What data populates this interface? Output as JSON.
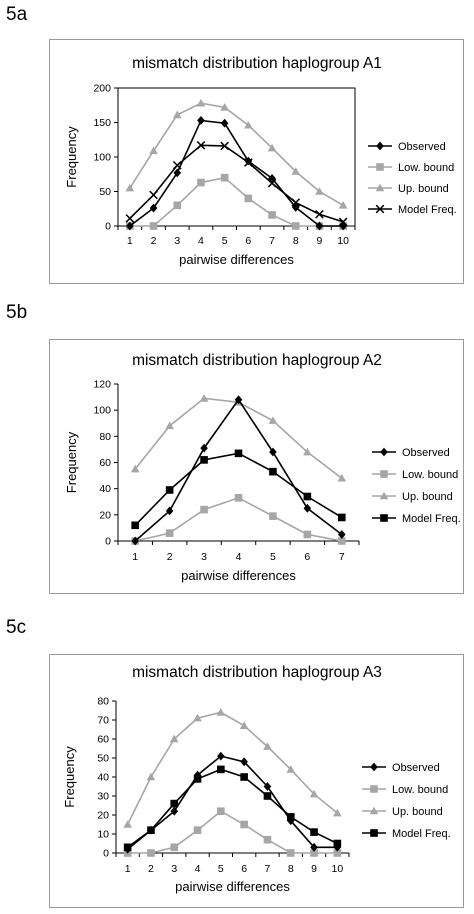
{
  "panels": [
    {
      "label": "5a"
    },
    {
      "label": "5b"
    },
    {
      "label": "5c"
    }
  ],
  "chart_data": [
    {
      "type": "line",
      "title": "mismatch distribution haplogroup A1",
      "xlabel": "pairwise differences",
      "ylabel": "Frequency",
      "categories": [
        "1",
        "2",
        "3",
        "4",
        "5",
        "6",
        "7",
        "8",
        "9",
        "10"
      ],
      "ylim": [
        0,
        200
      ],
      "yticks": [
        0,
        50,
        100,
        150,
        200
      ],
      "legend_position": "right",
      "plot_frame": true,
      "series": [
        {
          "name": "Observed",
          "marker": "diamond",
          "color": "#000000",
          "values": [
            0,
            26,
            77,
            153,
            149,
            94,
            69,
            27,
            0,
            0
          ]
        },
        {
          "name": "Low. bound",
          "marker": "square",
          "color": "#a6a6a6",
          "values": [
            0,
            0,
            30,
            63,
            70,
            40,
            16,
            0,
            0,
            0
          ]
        },
        {
          "name": "Up. bound",
          "marker": "triangle",
          "color": "#a6a6a6",
          "values": [
            55,
            109,
            161,
            178,
            172,
            146,
            113,
            79,
            50,
            30
          ]
        },
        {
          "name": "Model Freq.",
          "marker": "x",
          "color": "#000000",
          "values": [
            11,
            45,
            88,
            117,
            116,
            92,
            62,
            34,
            17,
            6
          ]
        }
      ]
    },
    {
      "type": "line",
      "title": "mismatch distribution haplogroup A2",
      "xlabel": "pairwise differences",
      "ylabel": "Frequency",
      "categories": [
        "1",
        "2",
        "3",
        "4",
        "5",
        "6",
        "7"
      ],
      "ylim": [
        0,
        120
      ],
      "yticks": [
        0,
        20,
        40,
        60,
        80,
        100,
        120
      ],
      "legend_position": "right",
      "plot_frame": false,
      "series": [
        {
          "name": "Observed",
          "marker": "diamond",
          "color": "#000000",
          "values": [
            0,
            23,
            71,
            108,
            68,
            25,
            5
          ]
        },
        {
          "name": "Low. bound",
          "marker": "square",
          "color": "#a6a6a6",
          "values": [
            0,
            6,
            24,
            33,
            19,
            5,
            0
          ]
        },
        {
          "name": "Up. bound",
          "marker": "triangle",
          "color": "#a6a6a6",
          "values": [
            55,
            88,
            109,
            106,
            92,
            68,
            48
          ]
        },
        {
          "name": "Model Freq.",
          "marker": "square",
          "color": "#000000",
          "values": [
            12,
            39,
            62,
            67,
            53,
            34,
            18
          ]
        }
      ]
    },
    {
      "type": "line",
      "title": "mismatch distribution haplogroup A3",
      "xlabel": "pairwise differences",
      "ylabel": "Frequency",
      "categories": [
        "1",
        "2",
        "3",
        "4",
        "5",
        "6",
        "7",
        "8",
        "9",
        "10"
      ],
      "ylim": [
        0,
        80
      ],
      "yticks": [
        0,
        10,
        20,
        30,
        40,
        50,
        60,
        70,
        80
      ],
      "legend_position": "right",
      "plot_frame": false,
      "series": [
        {
          "name": "Observed",
          "marker": "diamond",
          "color": "#000000",
          "values": [
            2,
            12,
            22,
            41,
            51,
            48,
            35,
            17,
            3,
            3
          ]
        },
        {
          "name": "Low. bound",
          "marker": "square",
          "color": "#a6a6a6",
          "values": [
            0,
            0,
            3,
            12,
            22,
            15,
            7,
            0,
            0,
            0
          ]
        },
        {
          "name": "Up. bound",
          "marker": "triangle",
          "color": "#a6a6a6",
          "values": [
            15,
            40,
            60,
            71,
            74,
            67,
            56,
            44,
            31,
            21
          ]
        },
        {
          "name": "Model Freq.",
          "marker": "square",
          "color": "#000000",
          "values": [
            3,
            12,
            26,
            39,
            44,
            40,
            30,
            19,
            11,
            5
          ]
        }
      ]
    }
  ]
}
